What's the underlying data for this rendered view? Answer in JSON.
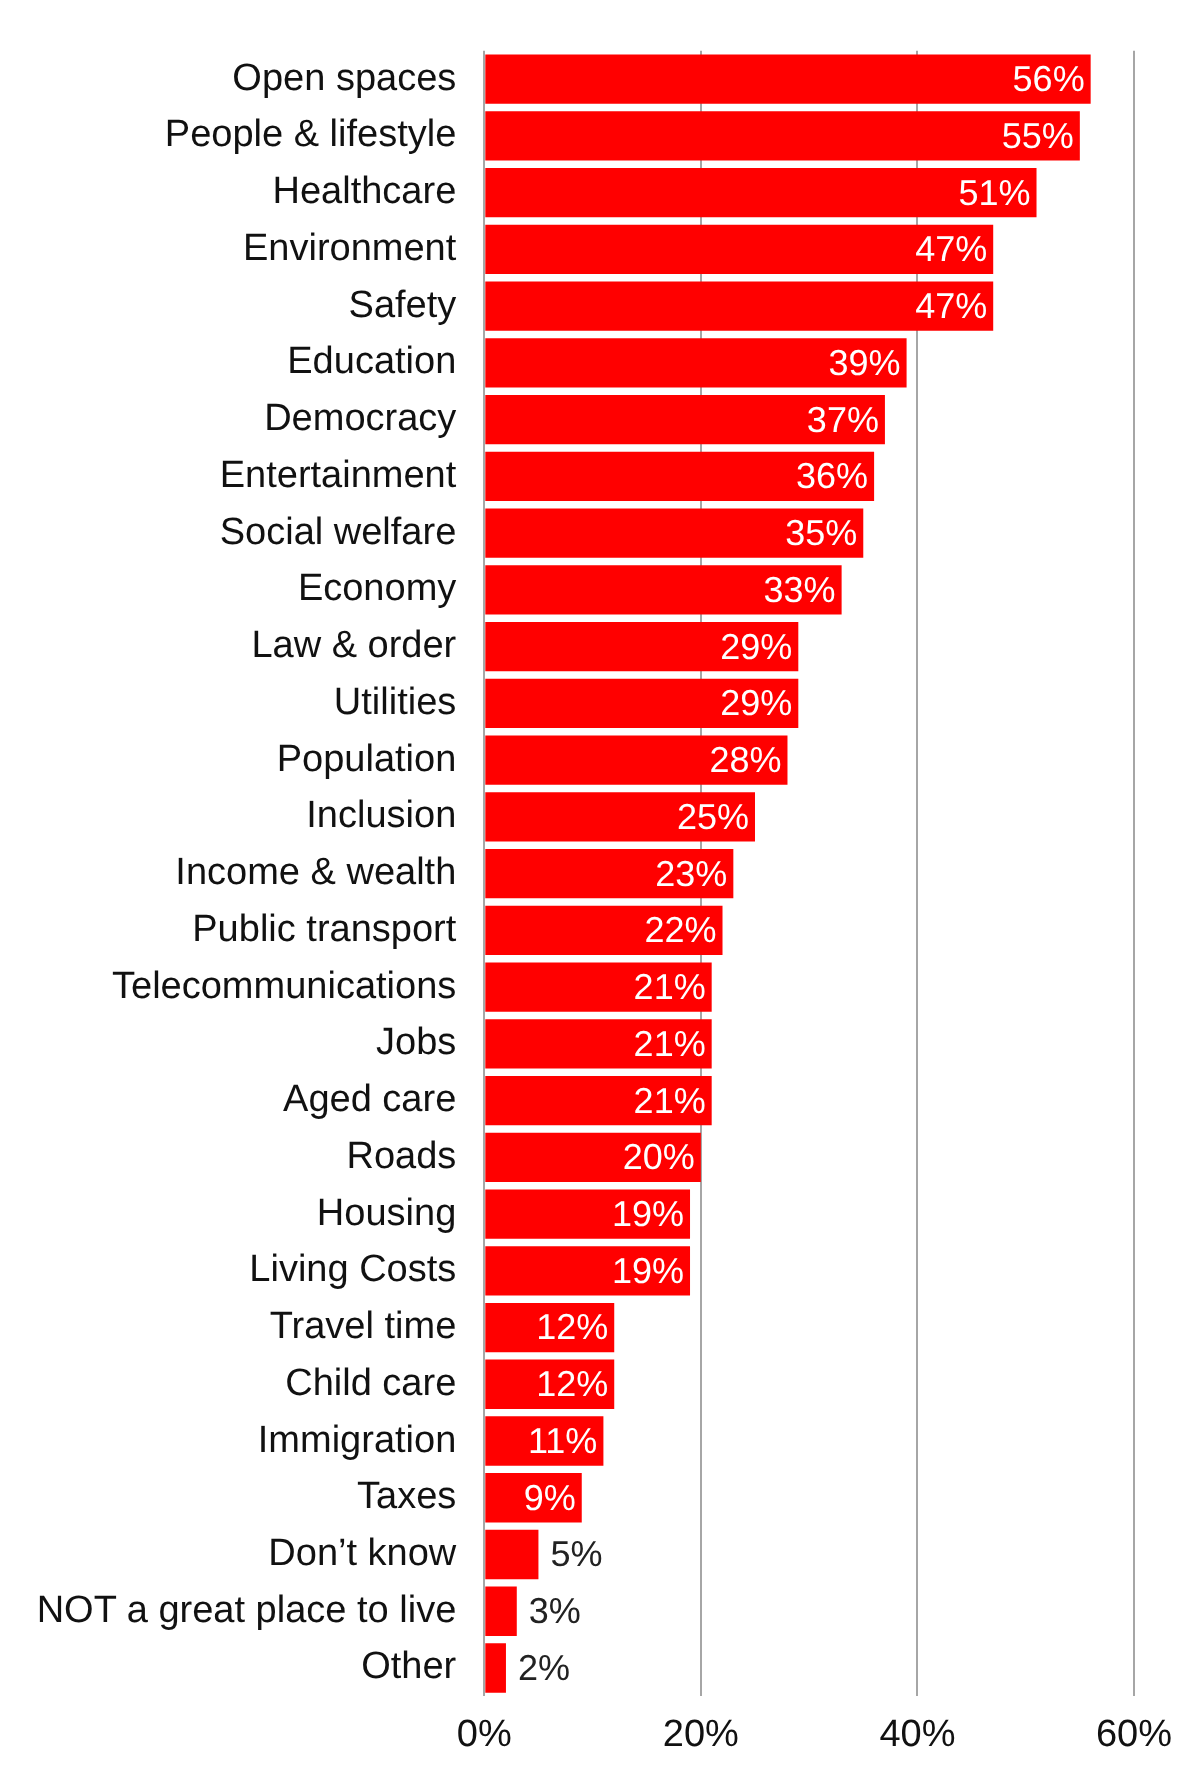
{
  "chart_data": {
    "type": "bar",
    "orientation": "horizontal",
    "categories": [
      "Open spaces",
      "People & lifestyle",
      "Healthcare",
      "Environment",
      "Safety",
      "Education",
      "Democracy",
      "Entertainment",
      "Social welfare",
      "Economy",
      "Law & order",
      "Utilities",
      "Population",
      "Inclusion",
      "Income & wealth",
      "Public transport",
      "Telecommunications",
      "Jobs",
      "Aged care",
      "Roads",
      "Housing",
      "Living Costs",
      "Travel time",
      "Child care",
      "Immigration",
      "Taxes",
      "Don’t know",
      "NOT a great place to live",
      "Other"
    ],
    "values": [
      56,
      55,
      51,
      47,
      47,
      39,
      37,
      36,
      35,
      33,
      29,
      29,
      28,
      25,
      23,
      22,
      21,
      21,
      21,
      20,
      19,
      19,
      12,
      12,
      11,
      9,
      5,
      3,
      2
    ],
    "value_labels": [
      "56%",
      "55%",
      "51%",
      "47%",
      "47%",
      "39%",
      "37%",
      "36%",
      "35%",
      "33%",
      "29%",
      "29%",
      "28%",
      "25%",
      "23%",
      "22%",
      "21%",
      "21%",
      "21%",
      "20%",
      "19%",
      "19%",
      "12%",
      "12%",
      "11%",
      "9%",
      "5%",
      "3%",
      "2%"
    ],
    "color": "#ff0000",
    "xlim": [
      0,
      60
    ],
    "xticks": [
      {
        "value": 0,
        "label": "0%"
      },
      {
        "value": 20,
        "label": "20%"
      },
      {
        "value": 40,
        "label": "40%"
      },
      {
        "value": 60,
        "label": "60%"
      }
    ],
    "grid": "x"
  }
}
